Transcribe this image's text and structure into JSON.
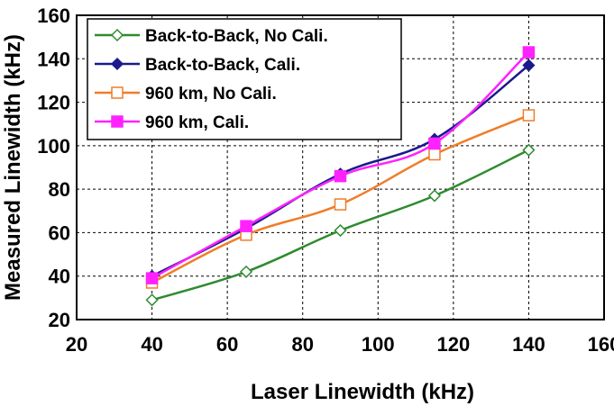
{
  "chart_data": {
    "type": "line",
    "xlabel": "Laser Linewidth (kHz)",
    "ylabel": "Measured Linewidth (kHz)",
    "xlim": [
      20,
      160
    ],
    "ylim": [
      20,
      160
    ],
    "x_ticks": [
      20,
      40,
      60,
      80,
      100,
      120,
      140,
      160
    ],
    "y_ticks": [
      20,
      40,
      60,
      80,
      100,
      120,
      140,
      160
    ],
    "grid": true,
    "legend_position": "top-left",
    "x": [
      40,
      65,
      90,
      115,
      140
    ],
    "series": [
      {
        "name": "Back-to-Back, No Cali.",
        "values": [
          29,
          42,
          61,
          77,
          98
        ],
        "color": "#2e8b2e",
        "marker": "diamond-open"
      },
      {
        "name": "Back-to-Back, Cali.",
        "values": [
          40,
          62,
          87,
          103,
          137
        ],
        "color": "#1a1a8c",
        "marker": "diamond-filled"
      },
      {
        "name": "960 km, No Cali.",
        "values": [
          37,
          59,
          73,
          96,
          114
        ],
        "color": "#f07d28",
        "marker": "square-open"
      },
      {
        "name": "960 km, Cali.",
        "values": [
          39,
          63,
          86,
          101,
          143
        ],
        "color": "#ff22ff",
        "marker": "square-filled"
      }
    ]
  }
}
